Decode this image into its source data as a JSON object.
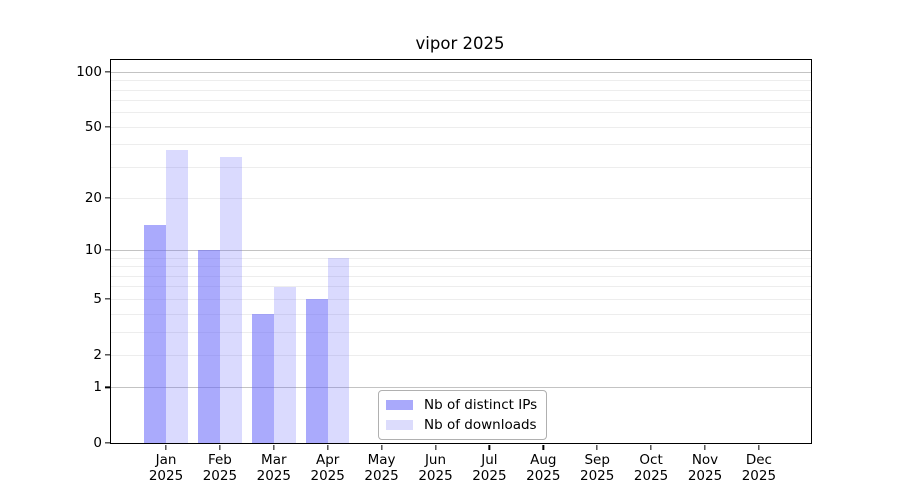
{
  "title": "vipor 2025",
  "chart_data": {
    "type": "bar",
    "title": "vipor 2025",
    "categories": [
      "Jan",
      "Feb",
      "Mar",
      "Apr",
      "May",
      "Jun",
      "Jul",
      "Aug",
      "Sep",
      "Oct",
      "Nov",
      "Dec"
    ],
    "category_year": "2025",
    "series": [
      {
        "name": "Nb of distinct IPs",
        "color": "rgba(100,100,250,0.55)",
        "swatch_color": "#a9a9fb",
        "values": [
          14,
          10,
          4,
          5,
          null,
          null,
          null,
          null,
          null,
          null,
          null,
          null
        ]
      },
      {
        "name": "Nb of downloads",
        "color": "rgba(100,100,250,0.24)",
        "swatch_color": "#dcdcfc",
        "values": [
          37,
          34,
          6,
          9,
          null,
          null,
          null,
          null,
          null,
          null,
          null,
          null
        ]
      }
    ],
    "yscale": "log1p",
    "ylim": [
      0,
      116
    ],
    "yticks": [
      0,
      1,
      2,
      5,
      10,
      20,
      50,
      100
    ],
    "gridlines": {
      "major": [
        1,
        10,
        100
      ],
      "minor": [
        2,
        3,
        4,
        5,
        6,
        7,
        8,
        9,
        20,
        30,
        40,
        50,
        60,
        70,
        80,
        90
      ],
      "major_color": "#c3c3c3",
      "minor_color": "#ededed"
    },
    "grid": true,
    "legend_position": "lower-center-inside",
    "xlabel": "",
    "ylabel": ""
  }
}
